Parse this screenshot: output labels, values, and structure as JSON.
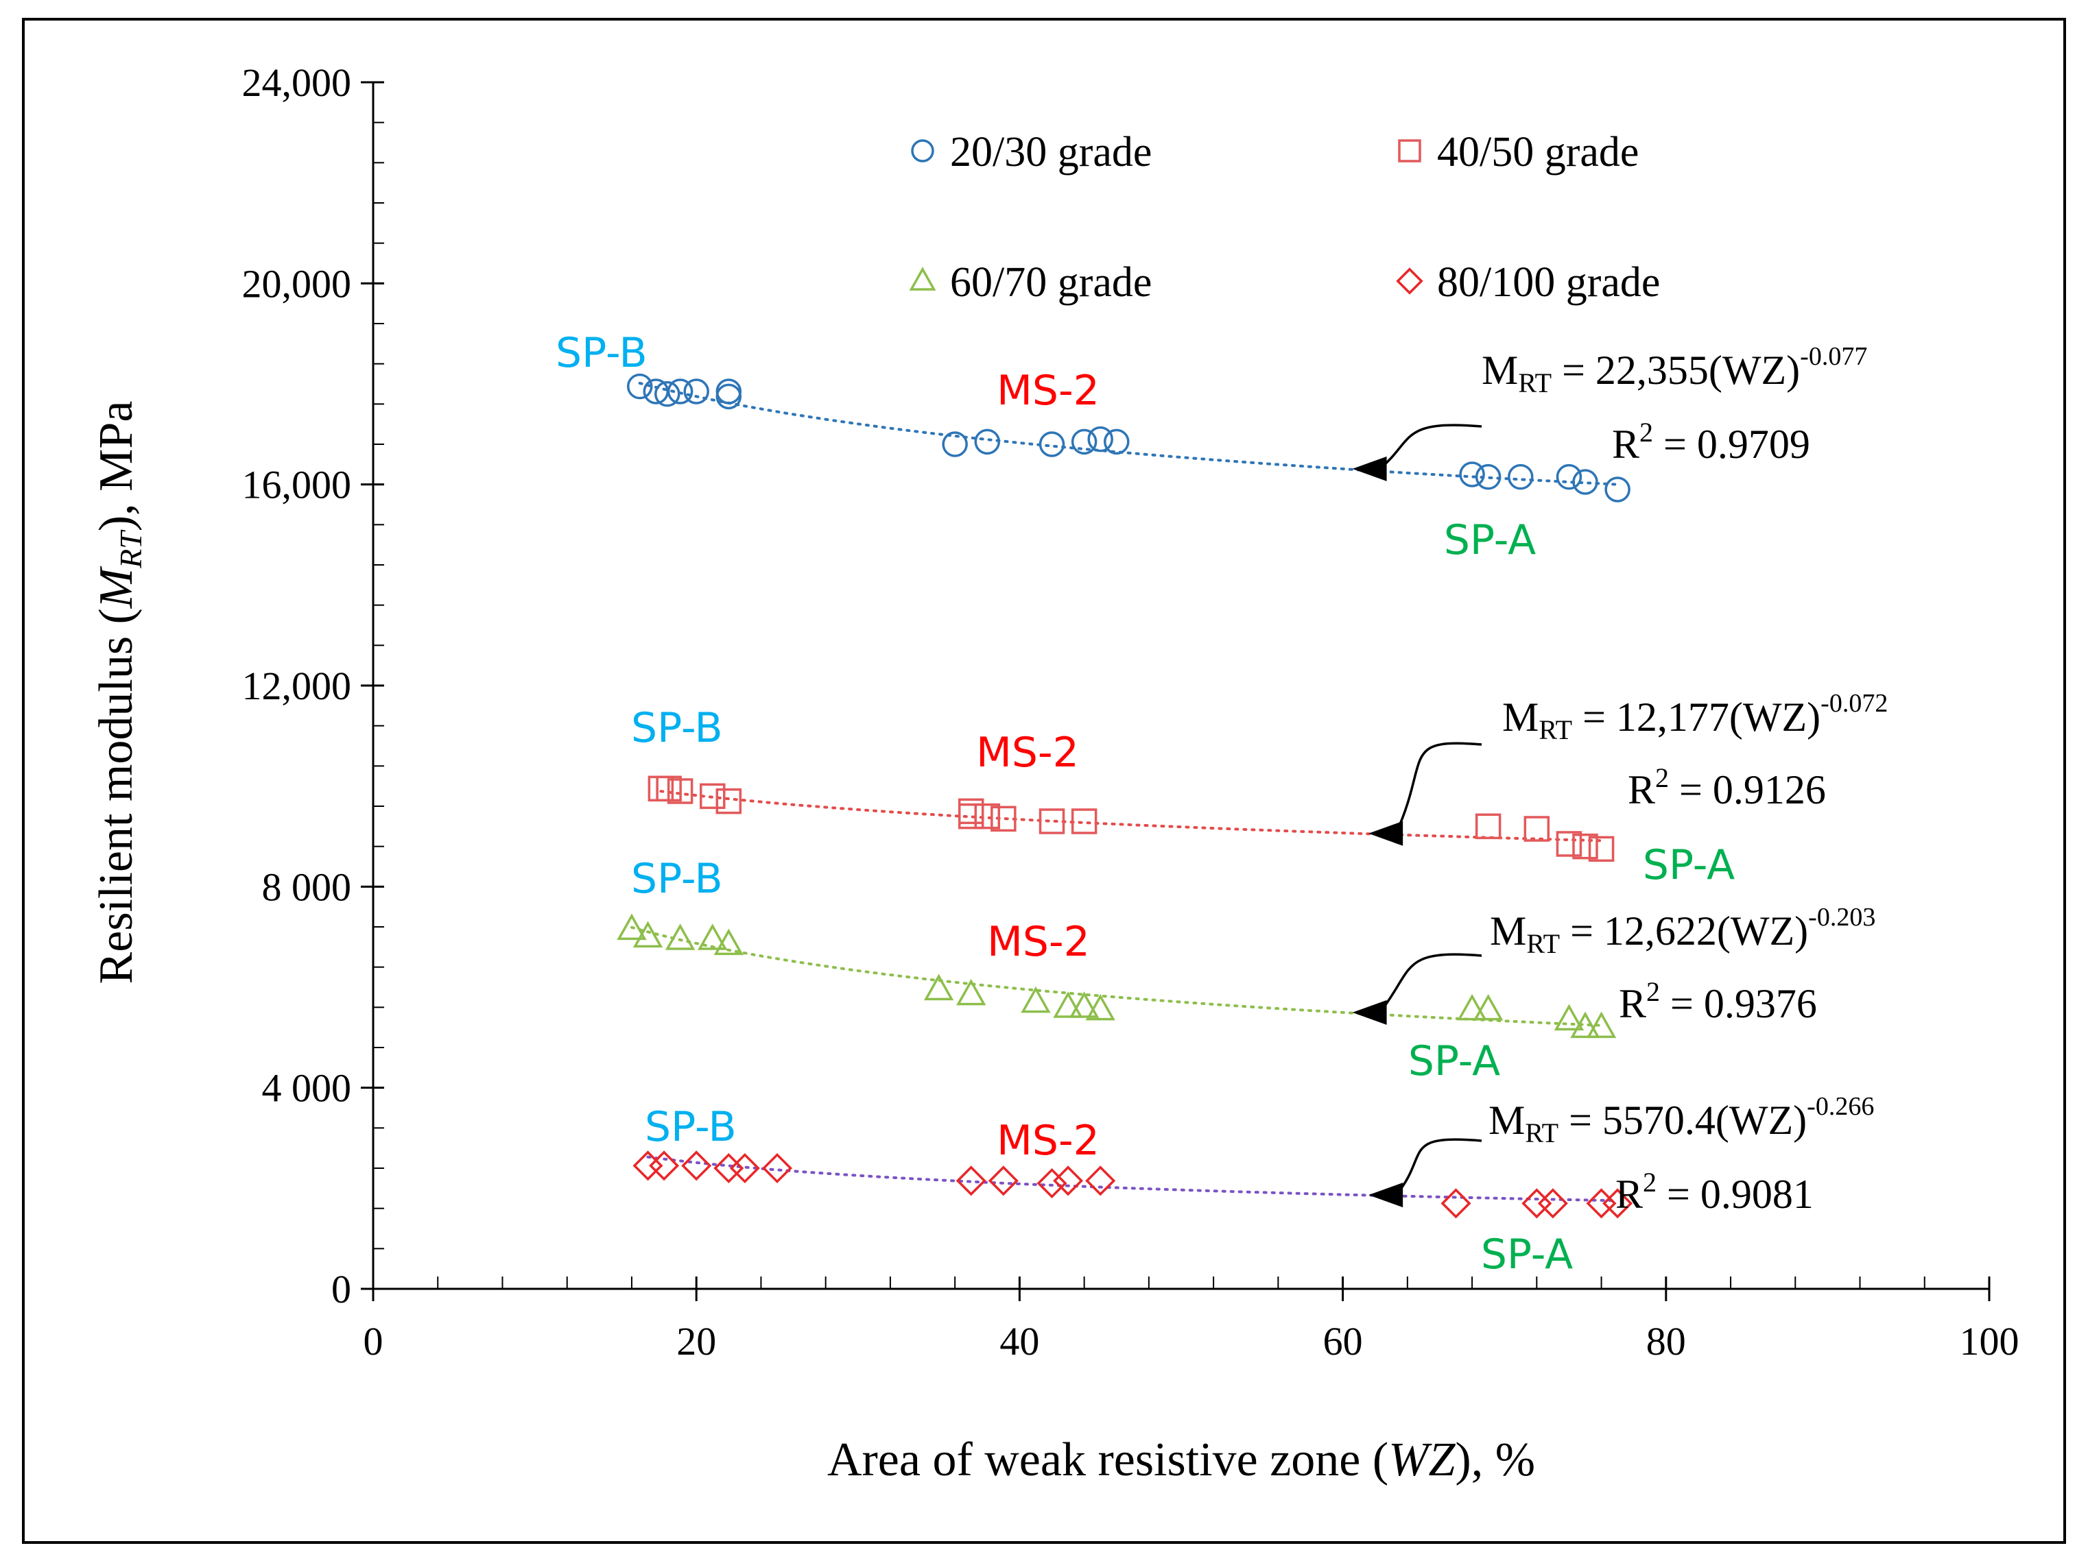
{
  "chart_data": {
    "type": "scatter",
    "xlabel": {
      "pre": "Area of weak resistive zone (",
      "var": "WZ",
      "post": "), %"
    },
    "ylabel": {
      "pre": "Resilient modulus (",
      "var": "M",
      "sub": "RT",
      "post": "), MPa"
    },
    "xlim": [
      0,
      100
    ],
    "ylim": [
      0,
      24000
    ],
    "x_ticks": [
      {
        "value": 0,
        "label": "0"
      },
      {
        "value": 20,
        "label": "20"
      },
      {
        "value": 40,
        "label": "40"
      },
      {
        "value": 60,
        "label": "60"
      },
      {
        "value": 80,
        "label": "80"
      },
      {
        "value": 100,
        "label": "100"
      }
    ],
    "y_ticks": [
      {
        "value": 0,
        "label": "0"
      },
      {
        "value": 4000,
        "label": "4 000"
      },
      {
        "value": 8000,
        "label": "8 000"
      },
      {
        "value": 12000,
        "label": "12,000"
      },
      {
        "value": 16000,
        "label": "16,000"
      },
      {
        "value": 20000,
        "label": "20,000"
      },
      {
        "value": 24000,
        "label": "24,000"
      }
    ],
    "x_minor_step": 4,
    "y_minor_step": 800,
    "grid": false,
    "legend_position": "top-right",
    "series": [
      {
        "name": "20/30 grade",
        "marker": "circle",
        "color": "#2E75B6",
        "trend_color": "#2E75B6",
        "x": [
          16.5,
          17.5,
          18.2,
          19.0,
          20.0,
          22.0,
          22.0,
          36.0,
          38.0,
          42.0,
          44.0,
          45.0,
          46.0,
          68.0,
          69.0,
          71.0,
          74.0,
          75.0,
          77.0
        ],
        "y": [
          17950,
          17850,
          17800,
          17850,
          17850,
          17850,
          17750,
          16800,
          16850,
          16800,
          16850,
          16900,
          16850,
          16200,
          16150,
          16150,
          16150,
          16050,
          15900
        ],
        "fit": {
          "a": 22355,
          "b": -0.077,
          "x_range": [
            16.5,
            77.0
          ]
        },
        "equation": {
          "coef": "22,355",
          "exp": "-0.077",
          "r2": "0.9709"
        },
        "arrow_target_x": 60,
        "labels": {
          "left": "SP-B",
          "middle": "MS-2",
          "right": "SP-A"
        }
      },
      {
        "name": "40/50 grade",
        "marker": "square",
        "color": "#E3595B",
        "trend_color": "#E34B4B",
        "x": [
          17.8,
          18.3,
          19.0,
          21.0,
          22.0,
          37.0,
          37.0,
          38.0,
          39.0,
          42.0,
          44.0,
          69.0,
          72.0,
          74.0,
          75.0,
          76.0
        ],
        "y": [
          9950,
          9950,
          9900,
          9800,
          9700,
          9500,
          9400,
          9400,
          9350,
          9300,
          9300,
          9200,
          9150,
          8850,
          8800,
          8750
        ],
        "fit": {
          "a": 12177,
          "b": -0.072,
          "x_range": [
            17.8,
            76.0
          ]
        },
        "equation": {
          "coef": "12,177",
          "exp": "-0.072",
          "r2": "0.9126"
        },
        "arrow_target_x": 61,
        "labels": {
          "left": "SP-B",
          "middle": "MS-2",
          "right": "SP-A"
        }
      },
      {
        "name": "60/70 grade",
        "marker": "triangle",
        "color": "#8DBE4B",
        "trend_color": "#8DBE4B",
        "x": [
          16.0,
          17.0,
          19.0,
          21.0,
          22.0,
          35.0,
          37.0,
          41.0,
          43.0,
          44.0,
          45.0,
          68.0,
          69.0,
          74.0,
          75.0,
          76.0
        ],
        "y": [
          7150,
          7000,
          6950,
          6950,
          6850,
          5950,
          5850,
          5700,
          5600,
          5600,
          5550,
          5550,
          5550,
          5350,
          5200,
          5200
        ],
        "fit": {
          "a": 12622,
          "b": -0.203,
          "x_range": [
            16.0,
            76.0
          ]
        },
        "equation": {
          "coef": "12,622",
          "exp": "-0.203",
          "r2": "0.9376"
        },
        "arrow_target_x": 60,
        "labels": {
          "left": "SP-B",
          "middle": "MS-2",
          "right": "SP-A"
        }
      },
      {
        "name": "80/100 grade",
        "marker": "diamond",
        "color": "#E8272A",
        "trend_color": "#7B52C4",
        "x": [
          17.0,
          18.0,
          20.0,
          22.0,
          23.0,
          25.0,
          37.0,
          39.0,
          42.0,
          43.0,
          45.0,
          67.0,
          72.0,
          73.0,
          76.0,
          77.0
        ],
        "y": [
          2450,
          2450,
          2450,
          2400,
          2400,
          2400,
          2150,
          2150,
          2100,
          2150,
          2150,
          1700,
          1700,
          1700,
          1700,
          1700
        ],
        "fit": {
          "a": 5570.4,
          "b": -0.266,
          "x_range": [
            17.0,
            77.0
          ]
        },
        "equation": {
          "coef": "5570.4",
          "exp": "-0.266",
          "r2": "0.9081"
        },
        "arrow_target_x": 61,
        "labels": {
          "left": "SP-B",
          "middle": "MS-2",
          "right": "SP-A"
        }
      }
    ],
    "equation_prefix": {
      "m": "M",
      "sub": "RT",
      "eq": " = ",
      "wz": "(WZ)"
    },
    "r2_prefix": {
      "r": "R",
      "sup": "2",
      "eq": " = "
    },
    "label_colors": {
      "SP-B": "#00B0F0",
      "MS-2": "#FF0000",
      "SP-A": "#00B050"
    }
  }
}
